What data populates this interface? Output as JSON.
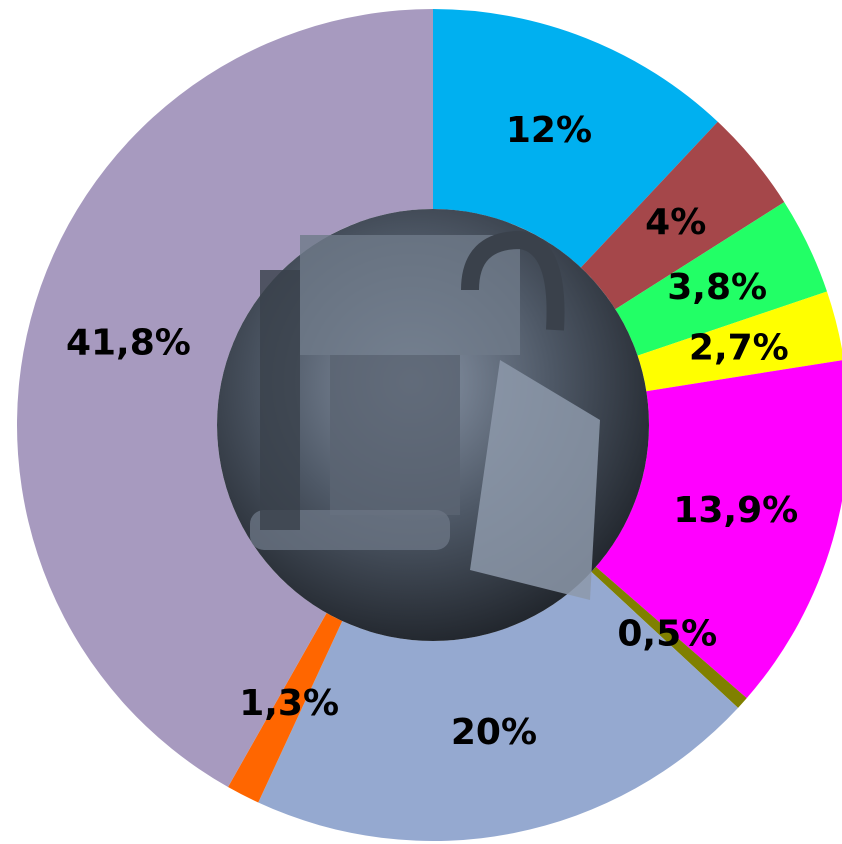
{
  "chart_data": {
    "type": "donut",
    "values": [
      12,
      4,
      3.8,
      2.7,
      13.9,
      0.5,
      20,
      1.3,
      41.8
    ],
    "value_labels": [
      "12%",
      "4%",
      "3,8%",
      "2,7%",
      "13,9%",
      "0,5%",
      "20%",
      "1,3%",
      "41,8%"
    ],
    "colors": [
      "#00b0f0",
      "#a5474a",
      "#22ff66",
      "#ffff00",
      "#ff00ff",
      "#808000",
      "#95a9d0",
      "#ff6600",
      "#a79abf"
    ]
  }
}
